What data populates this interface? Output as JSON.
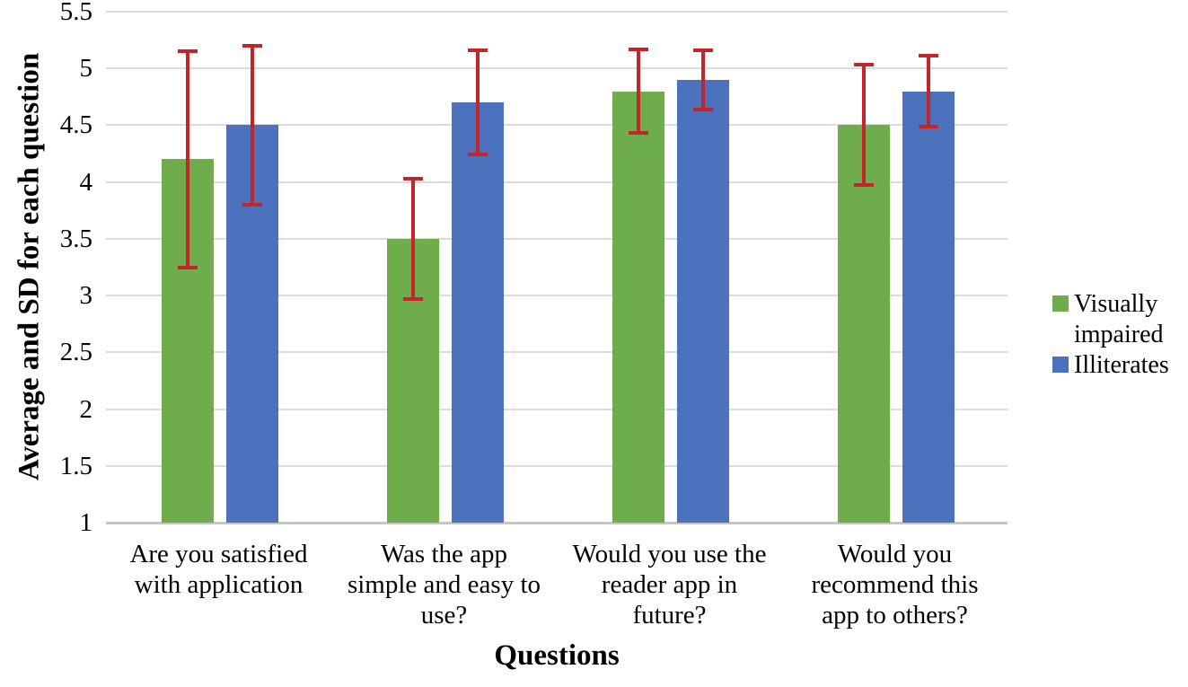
{
  "chart_data": {
    "type": "bar",
    "title": "",
    "xlabel": "Questions",
    "ylabel": "Average and SD for each question",
    "ylim": [
      1,
      5.5
    ],
    "ytick_step": 0.5,
    "ytick_labels": [
      "1",
      "1.5",
      "2",
      "2.5",
      "3",
      "3.5",
      "4",
      "4.5",
      "5",
      "5.5"
    ],
    "grid": true,
    "legend_position": "right",
    "categories": [
      "Are you satisfied\nwith application",
      "Was the app\nsimple and easy to\nuse?",
      "Would you use the\nreader app in\nfuture?",
      "Would you\nrecommend this\napp to others?"
    ],
    "series": [
      {
        "name": "Visually impaired",
        "color": "#6FAC4B",
        "values": [
          4.2,
          3.5,
          4.8,
          4.5
        ],
        "sd": [
          0.95,
          0.53,
          0.37,
          0.53
        ]
      },
      {
        "name": "Illiterates",
        "color": "#4C72BE",
        "values": [
          4.5,
          4.7,
          4.9,
          4.8
        ],
        "sd": [
          0.7,
          0.46,
          0.26,
          0.31
        ]
      }
    ],
    "error_bar_color": "#C2262B",
    "gridline_color": "#DCDCDC",
    "axis_line_color": "#C6C6C6"
  }
}
